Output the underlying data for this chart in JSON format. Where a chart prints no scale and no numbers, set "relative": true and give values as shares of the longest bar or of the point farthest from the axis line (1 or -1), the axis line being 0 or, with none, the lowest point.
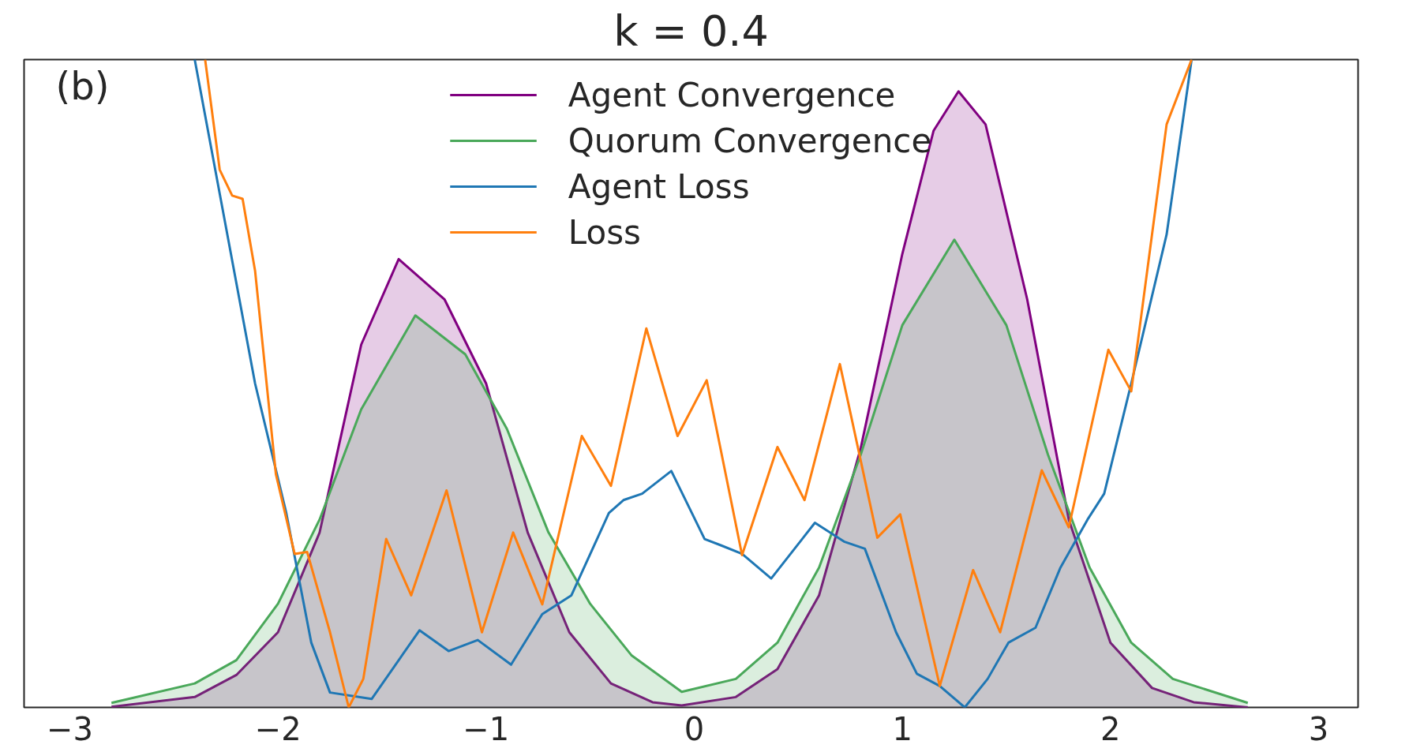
{
  "chart_data": {
    "type": "line",
    "title": "k = 0.4",
    "relative": true,
    "xlim": [
      -3.22,
      3.19
    ],
    "xticks": [
      {
        "value": -3,
        "label": "−3"
      },
      {
        "value": -2,
        "label": "−2"
      },
      {
        "value": -1,
        "label": "−1"
      },
      0,
      1,
      2,
      3
    ],
    "legend": "top",
    "annotations": [
      "(b)"
    ],
    "series": [
      {
        "name": "Agent Convergence",
        "type": "area",
        "color": "#800080",
        "x": [
          -2.8,
          -2.4,
          -2.2,
          -2.0,
          -1.8,
          -1.6,
          -1.42,
          -1.2,
          -1.0,
          -0.8,
          -0.6,
          -0.4,
          -0.2,
          -0.06,
          0.2,
          0.4,
          0.6,
          0.8,
          1.0,
          1.15,
          1.27,
          1.4,
          1.6,
          1.8,
          2.0,
          2.2,
          2.4,
          2.66
        ],
        "values": [
          0.001,
          0.016,
          0.05,
          0.116,
          0.27,
          0.56,
          0.692,
          0.63,
          0.5,
          0.27,
          0.116,
          0.037,
          0.008,
          0.003,
          0.016,
          0.059,
          0.173,
          0.4,
          0.7,
          0.89,
          0.951,
          0.9,
          0.63,
          0.29,
          0.1,
          0.03,
          0.008,
          0.0
        ]
      },
      {
        "name": "Quorum Convergence",
        "type": "area",
        "color": "#4aa85a",
        "x": [
          -2.8,
          -2.4,
          -2.2,
          -2.0,
          -1.8,
          -1.6,
          -1.34,
          -1.1,
          -0.9,
          -0.7,
          -0.5,
          -0.3,
          -0.06,
          0.2,
          0.4,
          0.6,
          0.8,
          1.0,
          1.25,
          1.5,
          1.7,
          1.9,
          2.1,
          2.3,
          2.66
        ],
        "values": [
          0.007,
          0.037,
          0.073,
          0.16,
          0.29,
          0.46,
          0.605,
          0.545,
          0.43,
          0.27,
          0.16,
          0.08,
          0.024,
          0.044,
          0.1,
          0.216,
          0.39,
          0.59,
          0.722,
          0.59,
          0.39,
          0.216,
          0.1,
          0.044,
          0.007
        ]
      },
      {
        "name": "Agent Loss",
        "color": "#1f77b4",
        "x": [
          -2.4,
          -2.11,
          -1.96,
          -1.84,
          -1.75,
          -1.55,
          -1.32,
          -1.18,
          -1.04,
          -0.88,
          -0.73,
          -0.59,
          -0.41,
          -0.34,
          -0.25,
          -0.11,
          0.05,
          0.13,
          0.23,
          0.37,
          0.58,
          0.72,
          0.82,
          0.97,
          1.07,
          1.18,
          1.3,
          1.41,
          1.51,
          1.64,
          1.76,
          1.89,
          1.97,
          2.1,
          2.27,
          2.39
        ],
        "values": [
          1.0,
          0.5,
          0.3,
          0.1,
          0.023,
          0.013,
          0.119,
          0.087,
          0.104,
          0.066,
          0.144,
          0.173,
          0.3,
          0.32,
          0.33,
          0.365,
          0.26,
          0.25,
          0.237,
          0.199,
          0.285,
          0.256,
          0.245,
          0.116,
          0.052,
          0.033,
          0.0,
          0.044,
          0.1,
          0.123,
          0.216,
          0.29,
          0.33,
          0.5,
          0.73,
          1.0
        ]
      },
      {
        "name": "Loss",
        "color": "#ff7f0e",
        "x": [
          -2.35,
          -2.28,
          -2.22,
          -2.17,
          -2.11,
          -2.01,
          -1.92,
          -1.86,
          -1.75,
          -1.66,
          -1.59,
          -1.48,
          -1.36,
          -1.19,
          -1.02,
          -0.87,
          -0.73,
          -0.54,
          -0.4,
          -0.23,
          -0.08,
          0.06,
          0.23,
          0.4,
          0.53,
          0.7,
          0.88,
          0.99,
          1.18,
          1.34,
          1.47,
          1.67,
          1.8,
          1.99,
          2.1,
          2.27,
          2.39
        ],
        "values": [
          1.0,
          0.83,
          0.79,
          0.785,
          0.674,
          0.36,
          0.237,
          0.24,
          0.116,
          0.0,
          0.044,
          0.26,
          0.173,
          0.335,
          0.116,
          0.27,
          0.159,
          0.419,
          0.342,
          0.585,
          0.419,
          0.505,
          0.235,
          0.402,
          0.32,
          0.53,
          0.262,
          0.298,
          0.033,
          0.212,
          0.116,
          0.366,
          0.278,
          0.552,
          0.488,
          0.9,
          1.0
        ]
      }
    ]
  }
}
